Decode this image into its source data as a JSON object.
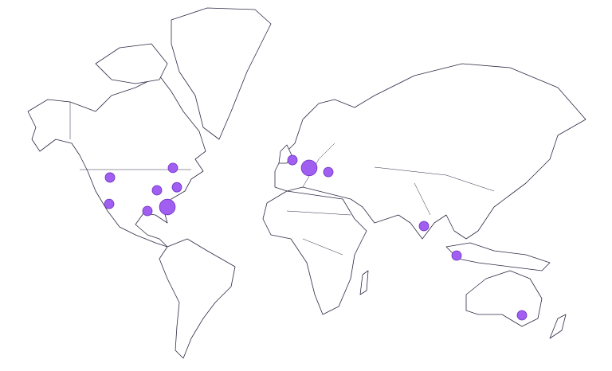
{
  "map": {
    "projection": "mercator",
    "land_fill": "#ffffff",
    "outline_color": "#2b2b45",
    "marker_fill": "#a05ff0",
    "marker_stroke": "#6d2fc0"
  },
  "markers": [
    {
      "lon": -114,
      "lat": 43.6,
      "value": 1
    },
    {
      "lon": -74.5,
      "lat": 47.8,
      "value": 1
    },
    {
      "lon": -84.5,
      "lat": 37.5,
      "value": 1
    },
    {
      "lon": -72,
      "lat": 39,
      "value": 1
    },
    {
      "lon": -114.5,
      "lat": 30.4,
      "value": 1
    },
    {
      "lon": -90.5,
      "lat": 26.5,
      "value": 1
    },
    {
      "lon": -78,
      "lat": 28.7,
      "value": 3
    },
    {
      "lon": 0.5,
      "lat": 51,
      "value": 1
    },
    {
      "lon": 11,
      "lat": 47.8,
      "value": 3
    },
    {
      "lon": 23,
      "lat": 46,
      "value": 1
    },
    {
      "lon": 83,
      "lat": 17.7,
      "value": 1
    },
    {
      "lon": 103.5,
      "lat": -0.5,
      "value": 1
    },
    {
      "lon": 144.5,
      "lat": -35.5,
      "value": 1
    }
  ]
}
